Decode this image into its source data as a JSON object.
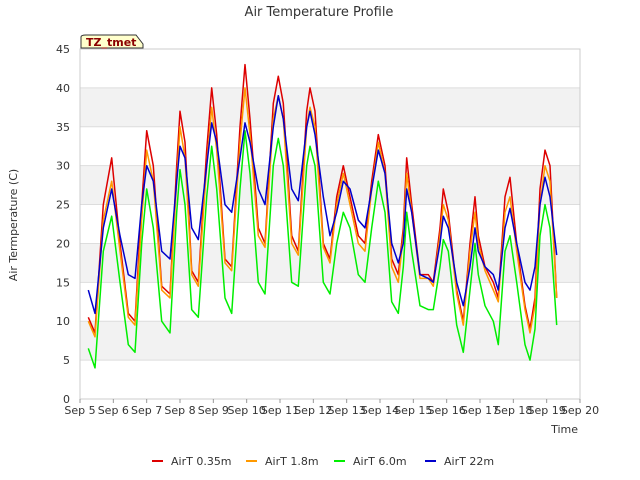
{
  "chart_data": {
    "type": "line",
    "title": "Air Temperature Profile",
    "xlabel": "Time",
    "ylabel": "Air Termperature (C)",
    "ylim": [
      0,
      45
    ],
    "xlim": [
      5,
      20
    ],
    "grid": true,
    "legend_position": "bottom",
    "badge": "TZ_tmet",
    "yticks": [
      0,
      5,
      10,
      15,
      20,
      25,
      30,
      35,
      40,
      45
    ],
    "xticks": [
      {
        "x": 5,
        "label": "Sep 5"
      },
      {
        "x": 6,
        "label": "Sep 6"
      },
      {
        "x": 7,
        "label": "Sep 7"
      },
      {
        "x": 8,
        "label": "Sep 8"
      },
      {
        "x": 9,
        "label": "Sep 9"
      },
      {
        "x": 10,
        "label": "Sep 10"
      },
      {
        "x": 11,
        "label": "Sep 11"
      },
      {
        "x": 12,
        "label": "Sep 12"
      },
      {
        "x": 13,
        "label": "Sep 13"
      },
      {
        "x": 14,
        "label": "Sep 14"
      },
      {
        "x": 15,
        "label": "Sep 15"
      },
      {
        "x": 16,
        "label": "Sep 16"
      },
      {
        "x": 17,
        "label": "Sep 17"
      },
      {
        "x": 18,
        "label": "Sep 18"
      },
      {
        "x": 19,
        "label": "Sep 19"
      },
      {
        "x": 20,
        "label": "Sep 20"
      }
    ],
    "series": [
      {
        "name": "AirT 0.35m",
        "color": "#dd0000",
        "points": [
          [
            5.25,
            10.5
          ],
          [
            5.45,
            8.5
          ],
          [
            5.7,
            25
          ],
          [
            5.95,
            31
          ],
          [
            6.2,
            20
          ],
          [
            6.45,
            11
          ],
          [
            6.65,
            10
          ],
          [
            6.85,
            25
          ],
          [
            7.0,
            34.5
          ],
          [
            7.2,
            30
          ],
          [
            7.45,
            14.5
          ],
          [
            7.7,
            13.5
          ],
          [
            7.9,
            30
          ],
          [
            8.0,
            37
          ],
          [
            8.15,
            33
          ],
          [
            8.35,
            16.5
          ],
          [
            8.55,
            15
          ],
          [
            8.8,
            32
          ],
          [
            8.95,
            40
          ],
          [
            9.1,
            34
          ],
          [
            9.35,
            18
          ],
          [
            9.55,
            17
          ],
          [
            9.8,
            35
          ],
          [
            9.95,
            43
          ],
          [
            10.1,
            36
          ],
          [
            10.35,
            22
          ],
          [
            10.55,
            20
          ],
          [
            10.8,
            38
          ],
          [
            10.95,
            41.5
          ],
          [
            11.1,
            38
          ],
          [
            11.35,
            21
          ],
          [
            11.55,
            19
          ],
          [
            11.8,
            37
          ],
          [
            11.9,
            40
          ],
          [
            12.05,
            37
          ],
          [
            12.3,
            20
          ],
          [
            12.5,
            18
          ],
          [
            12.7,
            26
          ],
          [
            12.9,
            30
          ],
          [
            13.1,
            26
          ],
          [
            13.35,
            21
          ],
          [
            13.55,
            20
          ],
          [
            13.75,
            28
          ],
          [
            13.95,
            34
          ],
          [
            14.15,
            30
          ],
          [
            14.35,
            18
          ],
          [
            14.55,
            16
          ],
          [
            14.7,
            22
          ],
          [
            14.8,
            31
          ],
          [
            14.95,
            25
          ],
          [
            15.2,
            16
          ],
          [
            15.45,
            16
          ],
          [
            15.6,
            15
          ],
          [
            15.8,
            22
          ],
          [
            15.9,
            27
          ],
          [
            16.05,
            24
          ],
          [
            16.3,
            14
          ],
          [
            16.5,
            10
          ],
          [
            16.7,
            20
          ],
          [
            16.85,
            26
          ],
          [
            16.95,
            21
          ],
          [
            17.15,
            17
          ],
          [
            17.4,
            15
          ],
          [
            17.55,
            13
          ],
          [
            17.75,
            26
          ],
          [
            17.9,
            28.5
          ],
          [
            18.1,
            20
          ],
          [
            18.35,
            12
          ],
          [
            18.5,
            9
          ],
          [
            18.65,
            13
          ],
          [
            18.8,
            27
          ],
          [
            18.95,
            32
          ],
          [
            19.1,
            30
          ],
          [
            19.3,
            13
          ]
        ]
      },
      {
        "name": "AirT 1.8m",
        "color": "#ff9900",
        "points": [
          [
            5.25,
            10
          ],
          [
            5.45,
            8
          ],
          [
            5.7,
            23
          ],
          [
            5.95,
            28
          ],
          [
            6.2,
            19
          ],
          [
            6.45,
            10.5
          ],
          [
            6.65,
            9.5
          ],
          [
            6.85,
            23
          ],
          [
            7.0,
            32
          ],
          [
            7.2,
            28
          ],
          [
            7.45,
            14
          ],
          [
            7.7,
            13
          ],
          [
            7.9,
            28
          ],
          [
            8.0,
            35
          ],
          [
            8.15,
            31
          ],
          [
            8.35,
            16
          ],
          [
            8.55,
            14.5
          ],
          [
            8.8,
            30
          ],
          [
            8.95,
            37.5
          ],
          [
            9.1,
            32
          ],
          [
            9.35,
            17.5
          ],
          [
            9.55,
            16.5
          ],
          [
            9.8,
            33
          ],
          [
            9.95,
            40
          ],
          [
            10.1,
            34
          ],
          [
            10.35,
            21
          ],
          [
            10.55,
            19.5
          ],
          [
            10.8,
            36
          ],
          [
            10.95,
            39
          ],
          [
            11.1,
            36
          ],
          [
            11.35,
            20
          ],
          [
            11.55,
            18.5
          ],
          [
            11.8,
            35
          ],
          [
            11.9,
            37.5
          ],
          [
            12.05,
            35
          ],
          [
            12.3,
            19.5
          ],
          [
            12.5,
            17.5
          ],
          [
            12.7,
            25
          ],
          [
            12.9,
            29
          ],
          [
            13.1,
            25
          ],
          [
            13.35,
            20
          ],
          [
            13.55,
            19
          ],
          [
            13.75,
            27
          ],
          [
            13.95,
            33
          ],
          [
            14.15,
            29
          ],
          [
            14.35,
            17
          ],
          [
            14.55,
            15
          ],
          [
            14.7,
            21
          ],
          [
            14.8,
            29
          ],
          [
            14.95,
            24
          ],
          [
            15.2,
            15.5
          ],
          [
            15.45,
            15.5
          ],
          [
            15.6,
            14.5
          ],
          [
            15.8,
            21
          ],
          [
            15.9,
            25
          ],
          [
            16.05,
            23
          ],
          [
            16.3,
            13.5
          ],
          [
            16.5,
            9.5
          ],
          [
            16.7,
            19
          ],
          [
            16.85,
            24
          ],
          [
            16.95,
            20
          ],
          [
            17.15,
            16.5
          ],
          [
            17.4,
            14
          ],
          [
            17.55,
            12.5
          ],
          [
            17.75,
            24
          ],
          [
            17.9,
            26
          ],
          [
            18.1,
            19
          ],
          [
            18.35,
            11.5
          ],
          [
            18.5,
            8.5
          ],
          [
            18.65,
            12
          ],
          [
            18.8,
            25
          ],
          [
            18.95,
            30
          ],
          [
            19.1,
            28
          ],
          [
            19.3,
            13
          ]
        ]
      },
      {
        "name": "AirT 6.0m",
        "color": "#00ee00",
        "points": [
          [
            5.25,
            6.5
          ],
          [
            5.45,
            4
          ],
          [
            5.7,
            19
          ],
          [
            5.95,
            23.5
          ],
          [
            6.2,
            15
          ],
          [
            6.45,
            7
          ],
          [
            6.65,
            6
          ],
          [
            6.85,
            20
          ],
          [
            7.0,
            27
          ],
          [
            7.2,
            22
          ],
          [
            7.45,
            10
          ],
          [
            7.7,
            8.5
          ],
          [
            7.9,
            24
          ],
          [
            8.0,
            29.5
          ],
          [
            8.15,
            25
          ],
          [
            8.35,
            11.5
          ],
          [
            8.55,
            10.5
          ],
          [
            8.8,
            26
          ],
          [
            8.95,
            32.5
          ],
          [
            9.1,
            27
          ],
          [
            9.35,
            13
          ],
          [
            9.55,
            11
          ],
          [
            9.8,
            27
          ],
          [
            9.95,
            34.5
          ],
          [
            10.1,
            29
          ],
          [
            10.35,
            15
          ],
          [
            10.55,
            13.5
          ],
          [
            10.8,
            30
          ],
          [
            10.95,
            33.5
          ],
          [
            11.1,
            30
          ],
          [
            11.35,
            15
          ],
          [
            11.55,
            14.5
          ],
          [
            11.8,
            30
          ],
          [
            11.9,
            32.5
          ],
          [
            12.05,
            30
          ],
          [
            12.3,
            15
          ],
          [
            12.5,
            13.5
          ],
          [
            12.7,
            20
          ],
          [
            12.9,
            24
          ],
          [
            13.1,
            22
          ],
          [
            13.35,
            16
          ],
          [
            13.55,
            15
          ],
          [
            13.75,
            22
          ],
          [
            13.95,
            28
          ],
          [
            14.15,
            24
          ],
          [
            14.35,
            12.5
          ],
          [
            14.55,
            11
          ],
          [
            14.7,
            17
          ],
          [
            14.8,
            24
          ],
          [
            14.95,
            19
          ],
          [
            15.2,
            12
          ],
          [
            15.45,
            11.5
          ],
          [
            15.6,
            11.5
          ],
          [
            15.8,
            17
          ],
          [
            15.9,
            20.5
          ],
          [
            16.05,
            19
          ],
          [
            16.3,
            9.5
          ],
          [
            16.5,
            6
          ],
          [
            16.7,
            14
          ],
          [
            16.85,
            20
          ],
          [
            16.95,
            16
          ],
          [
            17.15,
            12
          ],
          [
            17.4,
            10
          ],
          [
            17.55,
            7
          ],
          [
            17.75,
            19
          ],
          [
            17.9,
            21
          ],
          [
            18.1,
            15
          ],
          [
            18.35,
            7
          ],
          [
            18.5,
            5
          ],
          [
            18.65,
            9
          ],
          [
            18.8,
            21
          ],
          [
            18.95,
            25
          ],
          [
            19.1,
            22
          ],
          [
            19.3,
            9.5
          ]
        ]
      },
      {
        "name": "AirT 22m",
        "color": "#0000cc",
        "points": [
          [
            5.25,
            14
          ],
          [
            5.45,
            11
          ],
          [
            5.7,
            22
          ],
          [
            5.95,
            27
          ],
          [
            6.2,
            21
          ],
          [
            6.45,
            16
          ],
          [
            6.65,
            15.5
          ],
          [
            6.85,
            25
          ],
          [
            7.0,
            30
          ],
          [
            7.2,
            28
          ],
          [
            7.45,
            19
          ],
          [
            7.7,
            18
          ],
          [
            7.9,
            28
          ],
          [
            8.0,
            32.5
          ],
          [
            8.15,
            31
          ],
          [
            8.35,
            22
          ],
          [
            8.55,
            20.5
          ],
          [
            8.8,
            30
          ],
          [
            8.95,
            35.5
          ],
          [
            9.1,
            33
          ],
          [
            9.35,
            25
          ],
          [
            9.55,
            24
          ],
          [
            9.8,
            31
          ],
          [
            9.95,
            35.5
          ],
          [
            10.1,
            33
          ],
          [
            10.35,
            27
          ],
          [
            10.55,
            25
          ],
          [
            10.8,
            35
          ],
          [
            10.95,
            39
          ],
          [
            11.1,
            36
          ],
          [
            11.35,
            27
          ],
          [
            11.55,
            25.5
          ],
          [
            11.8,
            35
          ],
          [
            11.9,
            37
          ],
          [
            12.05,
            34
          ],
          [
            12.3,
            26
          ],
          [
            12.5,
            21
          ],
          [
            12.7,
            24
          ],
          [
            12.9,
            28
          ],
          [
            13.1,
            27
          ],
          [
            13.35,
            23
          ],
          [
            13.55,
            22
          ],
          [
            13.75,
            27
          ],
          [
            13.95,
            32
          ],
          [
            14.15,
            29
          ],
          [
            14.35,
            20
          ],
          [
            14.55,
            17.5
          ],
          [
            14.7,
            20
          ],
          [
            14.8,
            27
          ],
          [
            14.95,
            24
          ],
          [
            15.2,
            16
          ],
          [
            15.45,
            15.5
          ],
          [
            15.6,
            15
          ],
          [
            15.8,
            20
          ],
          [
            15.9,
            23.5
          ],
          [
            16.05,
            22
          ],
          [
            16.3,
            15
          ],
          [
            16.5,
            12
          ],
          [
            16.7,
            17
          ],
          [
            16.85,
            22
          ],
          [
            16.95,
            19
          ],
          [
            17.15,
            17
          ],
          [
            17.4,
            16
          ],
          [
            17.55,
            14
          ],
          [
            17.75,
            22
          ],
          [
            17.9,
            24.5
          ],
          [
            18.1,
            20
          ],
          [
            18.35,
            15
          ],
          [
            18.5,
            14
          ],
          [
            18.65,
            17
          ],
          [
            18.8,
            25
          ],
          [
            18.95,
            28.5
          ],
          [
            19.1,
            26
          ],
          [
            19.3,
            18.5
          ]
        ]
      }
    ]
  }
}
